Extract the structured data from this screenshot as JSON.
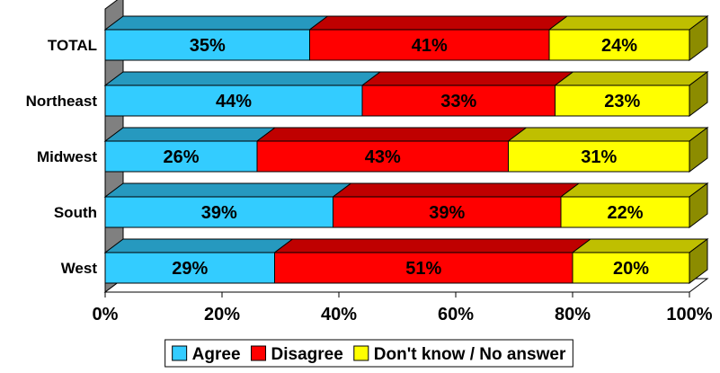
{
  "chart_data": {
    "type": "bar",
    "orientation": "horizontal",
    "stacked": true,
    "style": "3d",
    "categories": [
      "TOTAL",
      "Northeast",
      "Midwest",
      "South",
      "West"
    ],
    "series": [
      {
        "name": "Agree",
        "color": "#33CCFF",
        "values": [
          35,
          44,
          26,
          39,
          29
        ]
      },
      {
        "name": "Disagree",
        "color": "#FF0000",
        "values": [
          41,
          33,
          43,
          39,
          51
        ]
      },
      {
        "name": "Don't know / No answer",
        "color": "#FFFF00",
        "values": [
          24,
          23,
          31,
          22,
          20
        ]
      }
    ],
    "data_labels": [
      [
        "35%",
        "41%",
        "24%"
      ],
      [
        "44%",
        "33%",
        "23%"
      ],
      [
        "26%",
        "43%",
        "31%"
      ],
      [
        "39%",
        "39%",
        "22%"
      ],
      [
        "29%",
        "51%",
        "20%"
      ]
    ],
    "xticks": [
      "0%",
      "20%",
      "40%",
      "60%",
      "80%",
      "100%"
    ],
    "xlim": [
      0,
      100
    ],
    "title": "",
    "xlabel": "",
    "ylabel": "",
    "grid": false,
    "legend": {
      "position": "bottom",
      "entries": [
        "Agree",
        "Disagree",
        "Don't know / No answer"
      ]
    }
  }
}
